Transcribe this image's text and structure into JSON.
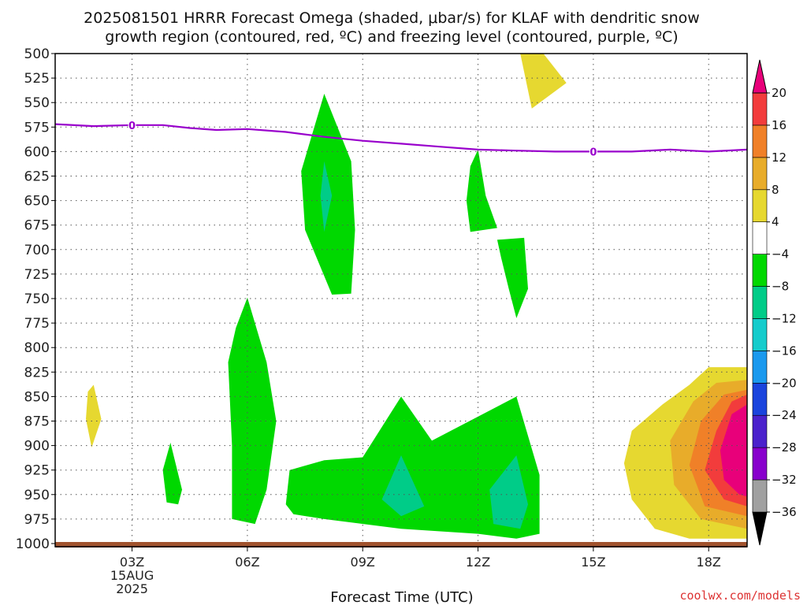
{
  "chart_data": {
    "type": "heatmap",
    "title_line1": "2025081501 HRRR Forecast Omega (shaded, μbar/s) for KLAF with dendritic snow",
    "title_line2": "growth region (contoured, red, ºC) and freezing level (contoured, purple, ºC)",
    "xlabel": "Forecast Time (UTC)",
    "x_ticks": [
      {
        "hour": 3,
        "label": "03Z",
        "sub1": "15AUG",
        "sub2": "2025"
      },
      {
        "hour": 6,
        "label": "06Z",
        "sub1": "",
        "sub2": ""
      },
      {
        "hour": 9,
        "label": "09Z",
        "sub1": "",
        "sub2": ""
      },
      {
        "hour": 12,
        "label": "12Z",
        "sub1": "",
        "sub2": ""
      },
      {
        "hour": 15,
        "label": "15Z",
        "sub1": "",
        "sub2": ""
      },
      {
        "hour": 18,
        "label": "18Z",
        "sub1": "",
        "sub2": ""
      }
    ],
    "xlim": [
      1,
      19
    ],
    "ylim": [
      1000,
      500
    ],
    "y_ticks": [
      "500",
      "525",
      "550",
      "575",
      "600",
      "625",
      "650",
      "675",
      "700",
      "725",
      "750",
      "775",
      "800",
      "825",
      "850",
      "875",
      "900",
      "925",
      "950",
      "975",
      "1000"
    ],
    "grid": "dotted",
    "colorbar": {
      "bounds": [
        -36,
        -32,
        -28,
        -24,
        -20,
        -16,
        -12,
        -8,
        -4,
        4,
        8,
        12,
        16,
        20
      ],
      "labels": [
        "20",
        "16",
        "12",
        "8",
        "4",
        "−4",
        "−8",
        "−12",
        "−16",
        "−20",
        "−24",
        "−28",
        "−32",
        "−36"
      ],
      "colors_bottom_to_top": [
        "#000000",
        "#a0a0a0",
        "#8800cc",
        "#4b22cc",
        "#1a44dd",
        "#1a99ee",
        "#15cccc",
        "#00cc88",
        "#00d800",
        "#ffffff",
        "#e6d830",
        "#e8ac2a",
        "#f08028",
        "#f23c3c",
        "#e8007a"
      ]
    },
    "series": [
      {
        "name": "",
        "kind": "freezing-level-0C",
        "color": "#9900cc",
        "x": [
          1,
          2,
          3,
          3.8,
          4.5,
          5.2,
          6,
          7,
          8,
          9,
          10,
          11,
          12,
          13,
          14,
          15,
          16,
          17,
          18,
          19
        ],
        "y": [
          572,
          574,
          573,
          573,
          576,
          578,
          577,
          580,
          585,
          589,
          592,
          595,
          598,
          599,
          600,
          600,
          600,
          598,
          600,
          598
        ]
      },
      {
        "name": "",
        "contour_label": "0",
        "x": 3,
        "y": 573
      },
      {
        "name": "",
        "contour_label": "0",
        "x": 15,
        "y": 600
      }
    ],
    "omega_regions": [
      {
        "value_class": "4",
        "color": "#e6d830",
        "points": [
          [
            13.7,
            500
          ],
          [
            14.3,
            530
          ],
          [
            13.4,
            556
          ],
          [
            13.1,
            500
          ]
        ]
      },
      {
        "value_class": "4",
        "color": "#e6d830",
        "points": [
          [
            2.0,
            838
          ],
          [
            2.2,
            873
          ],
          [
            1.95,
            902
          ],
          [
            1.8,
            873
          ],
          [
            1.85,
            845
          ]
        ]
      },
      {
        "value_class": "-4",
        "color": "#00d800",
        "points": [
          [
            8.0,
            541
          ],
          [
            8.7,
            610
          ],
          [
            8.8,
            680
          ],
          [
            8.7,
            745
          ],
          [
            8.2,
            746
          ],
          [
            7.5,
            680
          ],
          [
            7.4,
            620
          ]
        ]
      },
      {
        "value_class": "-8",
        "color": "#00cc88",
        "points": [
          [
            8.0,
            610
          ],
          [
            8.2,
            645
          ],
          [
            8.0,
            682
          ],
          [
            7.9,
            645
          ]
        ]
      },
      {
        "value_class": "-4",
        "color": "#00d800",
        "points": [
          [
            12.0,
            598
          ],
          [
            12.2,
            645
          ],
          [
            12.5,
            678
          ],
          [
            11.8,
            682
          ],
          [
            11.7,
            650
          ],
          [
            11.8,
            615
          ]
        ]
      },
      {
        "value_class": "-4",
        "color": "#00d800",
        "points": [
          [
            12.5,
            690
          ],
          [
            13.2,
            688
          ],
          [
            13.3,
            740
          ],
          [
            13.0,
            770
          ],
          [
            12.8,
            740
          ],
          [
            12.6,
            708
          ]
        ]
      },
      {
        "value_class": "-4",
        "color": "#00d800",
        "points": [
          [
            6.0,
            749
          ],
          [
            6.5,
            815
          ],
          [
            6.75,
            875
          ],
          [
            6.5,
            945
          ],
          [
            6.2,
            980
          ],
          [
            5.6,
            975
          ],
          [
            5.6,
            900
          ],
          [
            5.5,
            815
          ],
          [
            5.7,
            780
          ]
        ]
      },
      {
        "value_class": "-4",
        "color": "#00d800",
        "points": [
          [
            4.0,
            897
          ],
          [
            4.3,
            945
          ],
          [
            4.2,
            960
          ],
          [
            3.9,
            958
          ],
          [
            3.8,
            925
          ]
        ]
      },
      {
        "value_class": "-4",
        "color": "#00d800",
        "points": [
          [
            7.0,
            960
          ],
          [
            7.1,
            925
          ],
          [
            8.0,
            915
          ],
          [
            9.0,
            912
          ],
          [
            10.0,
            850
          ],
          [
            10.8,
            895
          ],
          [
            13.0,
            850
          ],
          [
            13.6,
            930
          ],
          [
            13.6,
            990
          ],
          [
            13.0,
            995
          ],
          [
            12.0,
            990
          ],
          [
            10.0,
            985
          ],
          [
            8.0,
            975
          ],
          [
            7.2,
            970
          ]
        ]
      },
      {
        "value_class": "-8",
        "color": "#00cc88",
        "points": [
          [
            10.0,
            910
          ],
          [
            10.6,
            962
          ],
          [
            10.0,
            972
          ],
          [
            9.5,
            955
          ]
        ]
      },
      {
        "value_class": "-8",
        "color": "#00cc88",
        "points": [
          [
            13.0,
            910
          ],
          [
            13.3,
            960
          ],
          [
            13.1,
            985
          ],
          [
            12.4,
            980
          ],
          [
            12.3,
            945
          ]
        ]
      },
      {
        "value_class": "4",
        "color": "#e6d830",
        "points": [
          [
            19,
            820
          ],
          [
            18,
            820
          ],
          [
            17.5,
            838
          ],
          [
            16.8,
            858
          ],
          [
            16.0,
            885
          ],
          [
            15.8,
            918
          ],
          [
            16.0,
            955
          ],
          [
            16.6,
            985
          ],
          [
            17.5,
            995
          ],
          [
            19,
            995
          ]
        ]
      },
      {
        "value_class": "8",
        "color": "#e8ac2a",
        "points": [
          [
            19,
            833
          ],
          [
            18.2,
            836
          ],
          [
            17.6,
            855
          ],
          [
            17.0,
            895
          ],
          [
            17.1,
            940
          ],
          [
            17.8,
            975
          ],
          [
            19,
            985
          ]
        ]
      },
      {
        "value_class": "12",
        "color": "#f08028",
        "points": [
          [
            19,
            843
          ],
          [
            18.4,
            848
          ],
          [
            17.8,
            875
          ],
          [
            17.5,
            920
          ],
          [
            17.9,
            962
          ],
          [
            19,
            972
          ]
        ]
      },
      {
        "value_class": "16",
        "color": "#f23c3c",
        "points": [
          [
            19,
            848
          ],
          [
            18.6,
            855
          ],
          [
            18.2,
            885
          ],
          [
            17.9,
            925
          ],
          [
            18.4,
            955
          ],
          [
            19,
            962
          ]
        ]
      },
      {
        "value_class": "20",
        "color": "#e8007a",
        "points": [
          [
            19,
            858
          ],
          [
            18.6,
            868
          ],
          [
            18.3,
            905
          ],
          [
            18.4,
            935
          ],
          [
            18.8,
            950
          ],
          [
            19,
            952
          ]
        ]
      }
    ],
    "surface_strip_color": "#a0522d"
  },
  "credit": "coolwx.com/models"
}
